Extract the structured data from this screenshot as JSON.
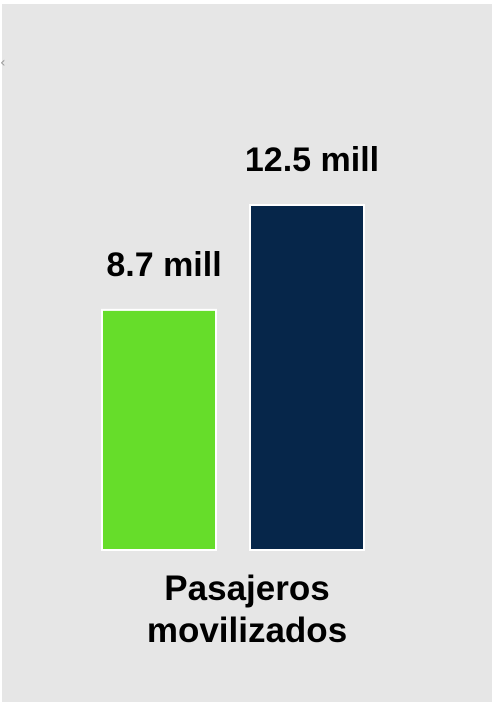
{
  "chart_data": {
    "type": "bar",
    "categories": [
      "",
      ""
    ],
    "values": [
      8.7,
      12.5
    ],
    "data_labels": [
      "8.7 mill",
      "12.5 mill"
    ],
    "colors": [
      "#66dd2a",
      "#06264a"
    ],
    "ylim": [
      0,
      20
    ],
    "grid": false,
    "legend": "none"
  },
  "caption": {
    "line1": "Pasajeros",
    "line2": "movilizados"
  },
  "corner_mark": "‹"
}
